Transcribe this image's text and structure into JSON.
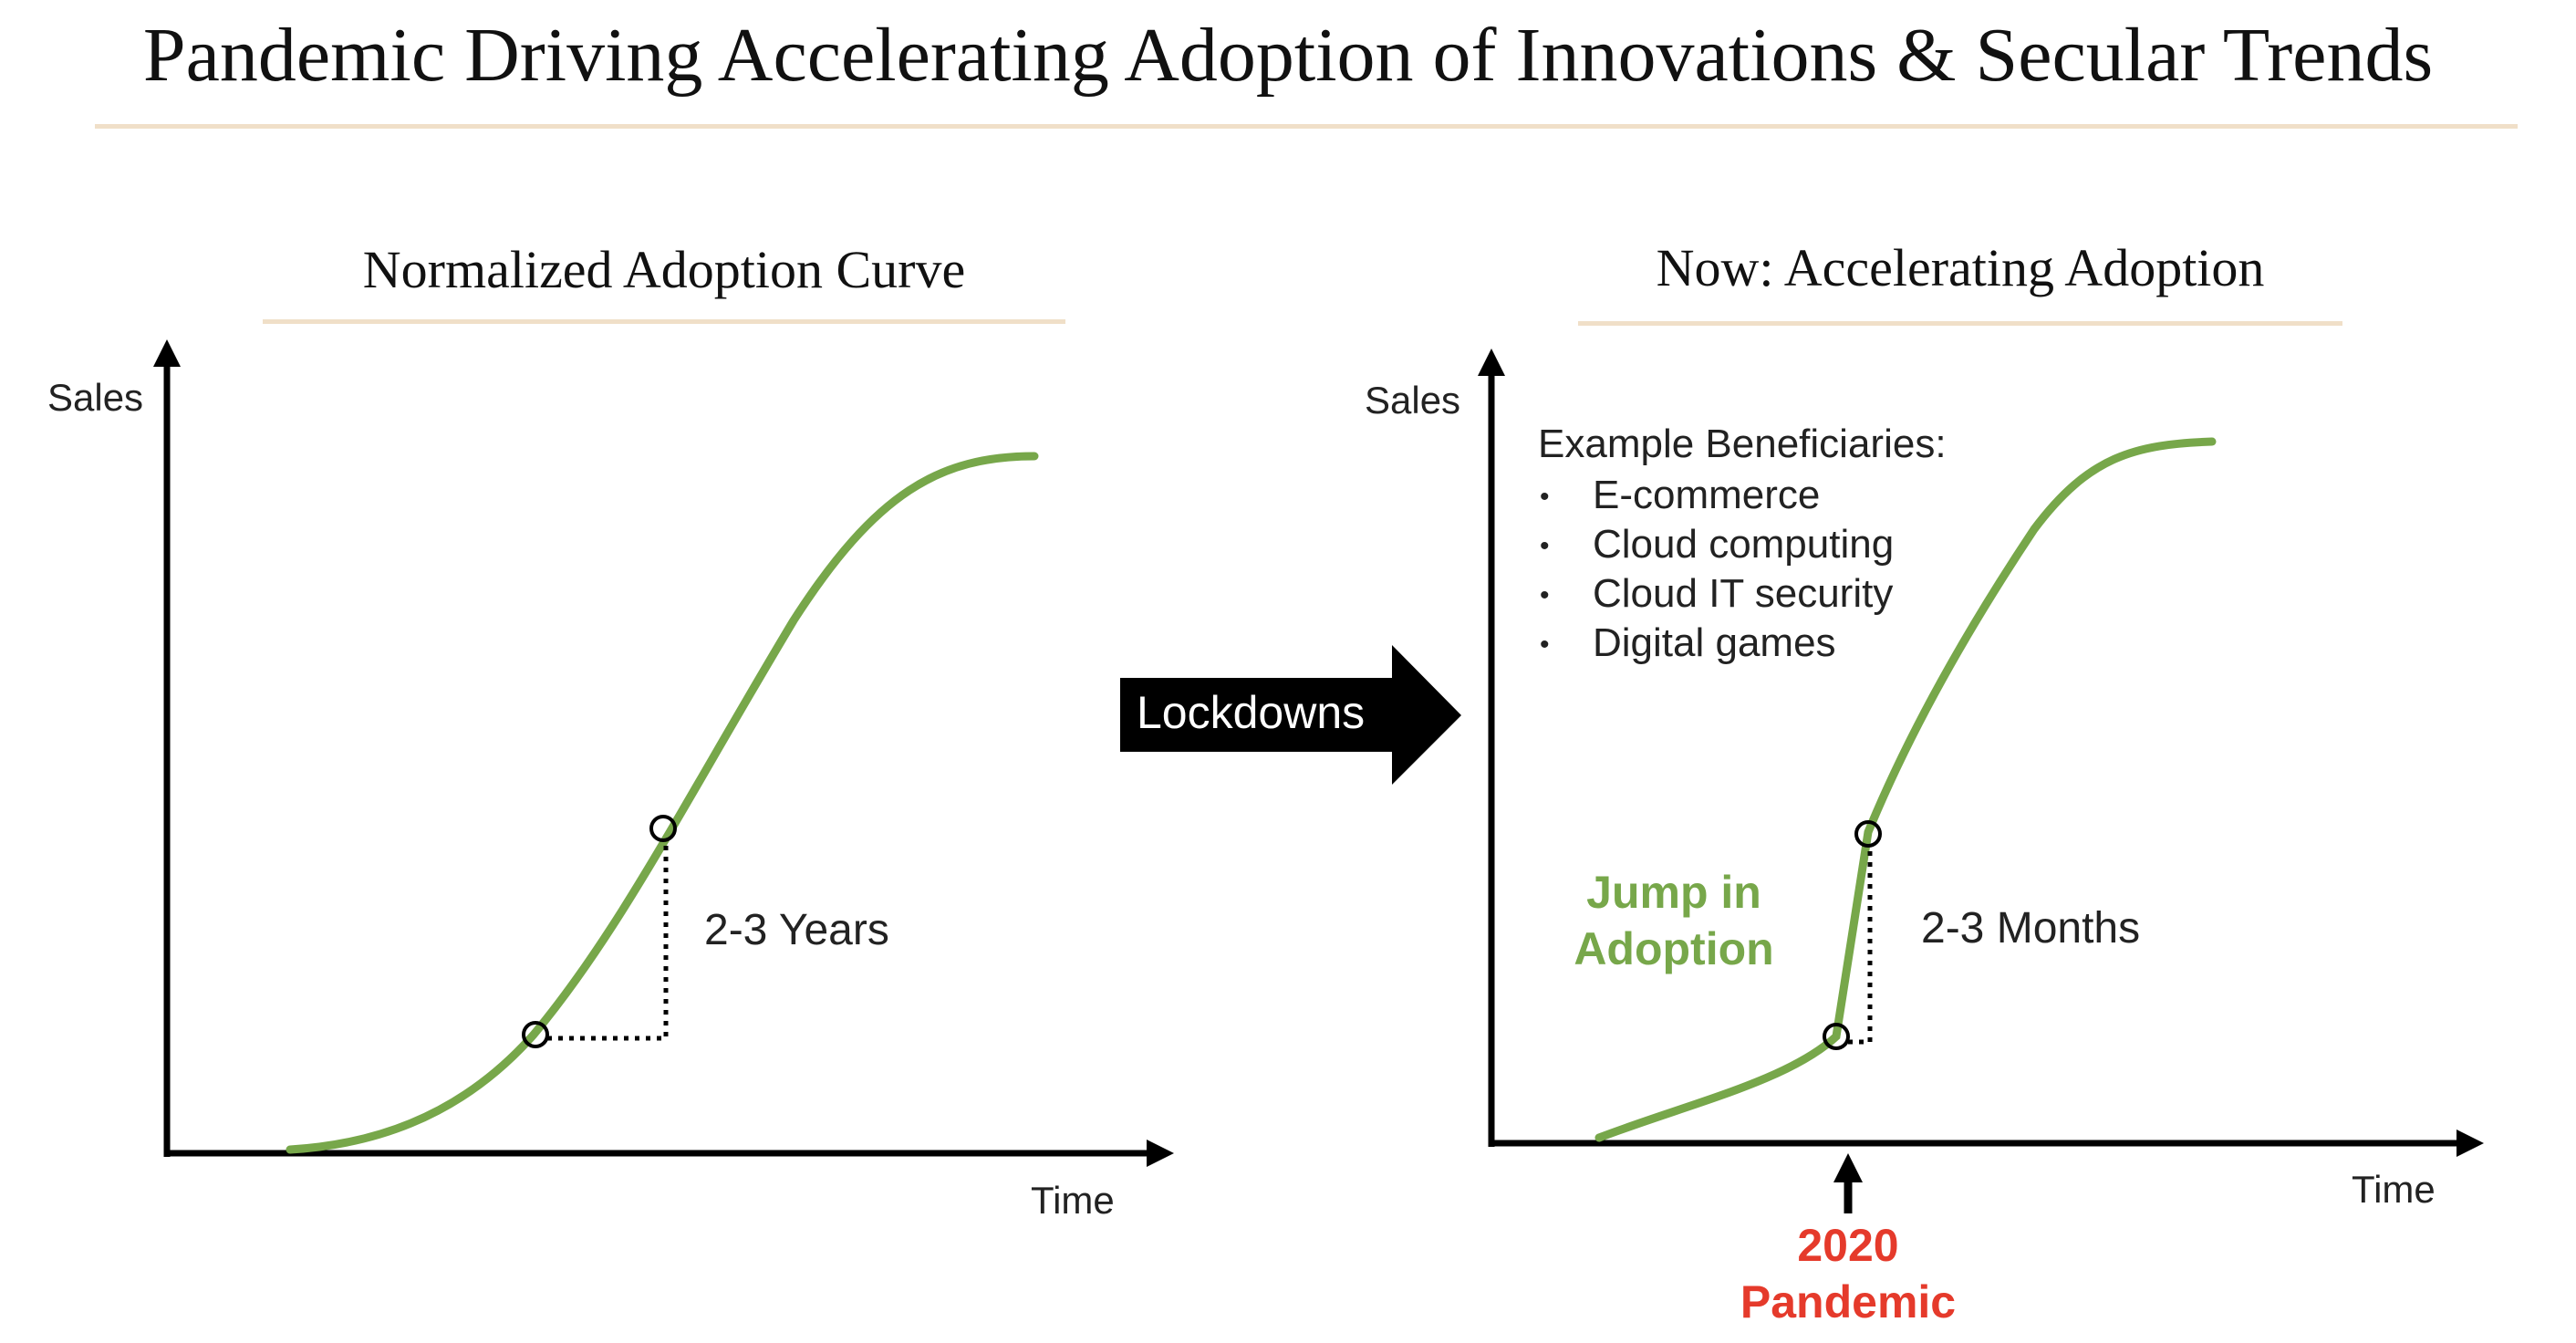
{
  "title": "Pandemic Driving Accelerating Adoption of Innovations & Secular Trends",
  "left_panel": {
    "title": "Normalized Adoption Curve",
    "y_axis_label": "Sales",
    "x_axis_label": "Time",
    "interval_label": "2-3 Years"
  },
  "middle_arrow": {
    "label": "Lockdowns"
  },
  "right_panel": {
    "title": "Now: Accelerating Adoption",
    "y_axis_label": "Sales",
    "x_axis_label": "Time",
    "interval_label": "2-3 Months",
    "jump_label": [
      "Jump in",
      "Adoption"
    ],
    "event_label": [
      "2020",
      "Pandemic"
    ],
    "beneficiaries_title": "Example Beneficiaries:",
    "beneficiaries": [
      "E-commerce",
      "Cloud computing",
      "Cloud IT security",
      "Digital games"
    ]
  },
  "colors": {
    "curve": "#77a74a",
    "event": "#e53a2b",
    "rule": "#f0dfc8"
  }
}
